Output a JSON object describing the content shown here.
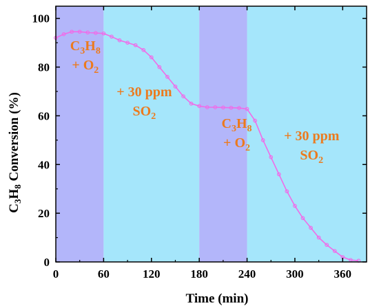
{
  "chart_data": {
    "type": "scatter",
    "xlabel": "Time (min)",
    "ylabel": {
      "p1": "C",
      "s1": "3",
      "p2": "H",
      "s2": "8",
      "p3": " Conversion (%)"
    },
    "xlim": [
      0,
      390
    ],
    "ylim": [
      0,
      105
    ],
    "xticks": [
      0,
      60,
      120,
      180,
      240,
      300,
      360
    ],
    "yticks": [
      0,
      20,
      40,
      60,
      80,
      100
    ],
    "grid": false,
    "colors": {
      "series": "#f06be8",
      "band_reaction": "#b3b6fa",
      "band_so2": "#a5e6fb",
      "annotation": "#ec7a1d"
    },
    "bands": [
      {
        "x": [
          0,
          60
        ],
        "condition": "C3H8 + O2",
        "color": "band_reaction"
      },
      {
        "x": [
          60,
          180
        ],
        "condition": "+ 30 ppm SO2",
        "color": "band_so2"
      },
      {
        "x": [
          180,
          240
        ],
        "condition": "C3H8 + O2",
        "color": "band_reaction"
      },
      {
        "x": [
          240,
          390
        ],
        "condition": "+ 30 ppm SO2",
        "color": "band_so2"
      }
    ],
    "annotations": [
      {
        "line1": {
          "p1": "C",
          "s1": "3",
          "p2": "H",
          "s2": "8"
        },
        "line2": {
          "p1": "+ O",
          "s1": "2"
        },
        "x": 18,
        "y": 87
      },
      {
        "line1": {
          "p1": "+ 30 ppm"
        },
        "line2": {
          "p1": "SO",
          "s1": "2"
        },
        "x": 92,
        "y": 68
      },
      {
        "line1": {
          "p1": "C",
          "s1": "3",
          "p2": "H",
          "s2": "8"
        },
        "line2": {
          "p1": "+ O",
          "s1": "2"
        },
        "x": 208,
        "y": 55
      },
      {
        "line1": {
          "p1": "+ 30 ppm"
        },
        "line2": {
          "p1": "SO",
          "s1": "2"
        },
        "x": 302,
        "y": 50
      }
    ],
    "series": [
      {
        "x": [
          0,
          10,
          20,
          30,
          40,
          50,
          60,
          70,
          80,
          90,
          100,
          110,
          120,
          130,
          140,
          150,
          160,
          170,
          180,
          190,
          200,
          210,
          220,
          230,
          240,
          250,
          260,
          270,
          280,
          290,
          300,
          310,
          320,
          330,
          340,
          350,
          360,
          370,
          380
        ],
        "y": [
          92,
          93.5,
          94.5,
          94.5,
          94.2,
          94,
          93.8,
          92.5,
          91,
          90,
          89,
          87,
          84,
          80,
          76,
          72,
          68,
          65,
          64,
          63.5,
          63.5,
          63.4,
          63.3,
          63.2,
          62.8,
          58,
          50,
          43,
          36,
          29,
          23,
          18,
          14,
          10,
          7,
          4.5,
          2,
          0.8,
          0.5
        ]
      }
    ]
  }
}
